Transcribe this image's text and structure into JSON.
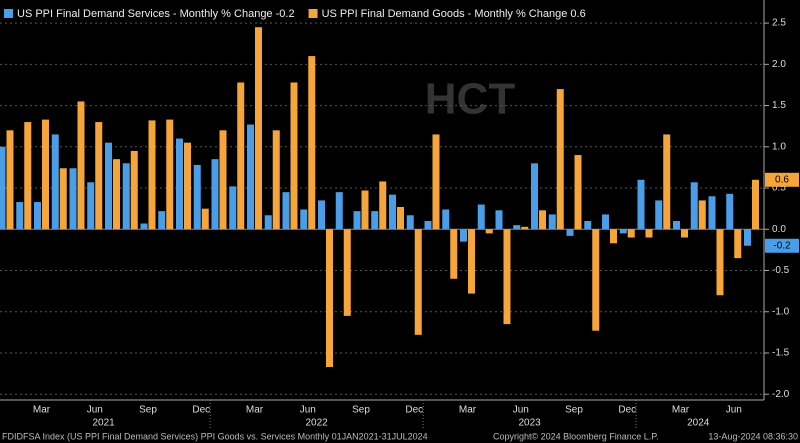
{
  "chart_data": {
    "type": "bar",
    "categories": [
      null,
      null,
      "Mar",
      null,
      null,
      "Jun",
      null,
      null,
      "Sep",
      null,
      null,
      "Dec",
      null,
      null,
      "Mar",
      null,
      null,
      "Jun",
      null,
      null,
      "Sep",
      null,
      null,
      "Dec",
      null,
      null,
      "Mar",
      null,
      null,
      "Jun",
      null,
      null,
      "Sep",
      null,
      null,
      "Dec",
      null,
      null,
      "Mar",
      null,
      null,
      "Jun",
      null
    ],
    "years": [
      "2021",
      "2022",
      "2023",
      "2024"
    ],
    "series": [
      {
        "name": "US PPI Final Demand Services - Monthly % Change -0.2",
        "color": "#4a9ee8",
        "last_value": -0.2,
        "values": [
          1.0,
          0.33,
          0.33,
          1.15,
          0.74,
          0.57,
          1.05,
          0.8,
          0.07,
          0.22,
          1.1,
          0.78,
          0.85,
          0.52,
          1.27,
          0.17,
          0.45,
          0.24,
          0.35,
          0.45,
          0.22,
          0.22,
          0.42,
          0.17,
          0.1,
          0.24,
          -0.15,
          0.3,
          0.23,
          0.05,
          0.8,
          0.18,
          -0.08,
          0.1,
          0.18,
          -0.05,
          0.6,
          0.35,
          0.1,
          0.57,
          0.4,
          0.43,
          -0.2
        ]
      },
      {
        "name": "US PPI Final Demand Goods - Monthly % Change 0.6",
        "color": "#f5a53a",
        "last_value": 0.6,
        "values": [
          1.2,
          1.3,
          1.33,
          0.74,
          1.55,
          1.3,
          0.85,
          0.95,
          1.32,
          1.33,
          1.05,
          0.25,
          1.2,
          1.78,
          2.45,
          1.2,
          1.78,
          2.1,
          -1.67,
          -1.05,
          0.47,
          0.58,
          0.27,
          -1.28,
          1.15,
          -0.6,
          -0.78,
          -0.05,
          -1.15,
          0.03,
          0.23,
          1.7,
          0.9,
          -1.23,
          -0.17,
          -0.1,
          -0.1,
          1.15,
          -0.1,
          0.35,
          -0.8,
          -0.35,
          0.6
        ]
      }
    ],
    "ylim": [
      -2.07,
      2.78
    ],
    "yticks": [
      {
        "value": -2,
        "label": "-2.0"
      },
      -1.5,
      {
        "value": -1,
        "label": "-1.0"
      },
      -0.5,
      {
        "value": 0,
        "label": "0.0"
      },
      0.5,
      {
        "value": 1,
        "label": "1.0"
      },
      1.5,
      {
        "value": 2,
        "label": "2.0"
      },
      2.5
    ],
    "grid": true,
    "watermark": "HCT",
    "footer": [
      "FDIDFSA Index (US PPI Final Demand Services) PPI Goods vs. Services  Monthly 01JAN2021-31JUL2024",
      "Copyright© 2024 Bloomberg Finance L.P.",
      "13-Aug-2024 08:36:30"
    ]
  }
}
